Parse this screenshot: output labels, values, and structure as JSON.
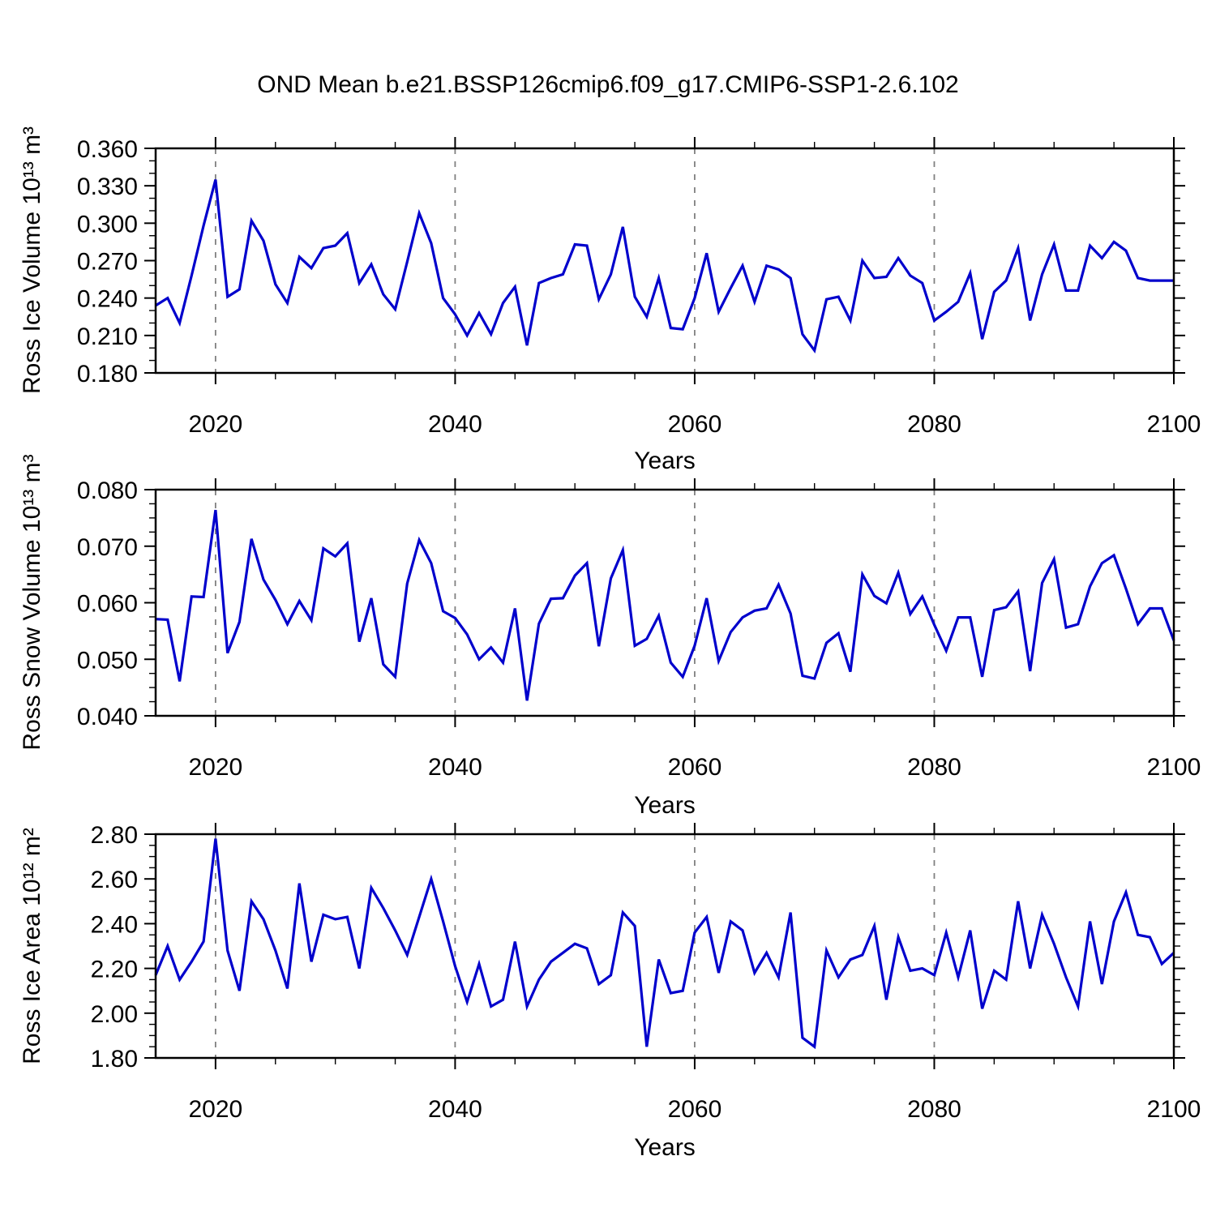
{
  "title": "OND Mean b.e21.BSSP126cmip6.f09_g17.CMIP6-SSP1-2.6.102",
  "xlabel": "Years",
  "line_color": "#0000CC",
  "grid_color": "#808080",
  "axis_color": "#000000",
  "chart_data": [
    {
      "type": "line",
      "ylabel": "Ross Ice Volume 10¹³ m³",
      "ylim": [
        0.18,
        0.36
      ],
      "ytick_values": [
        0.18,
        0.21,
        0.24,
        0.27,
        0.3,
        0.33,
        0.36
      ],
      "ytick_labels": [
        "0.180",
        "0.210",
        "0.240",
        "0.270",
        "0.300",
        "0.330",
        "0.360"
      ],
      "y_minor_step": 0.01,
      "xlim": [
        2015,
        2100
      ],
      "x_start": 2015,
      "x_step": 1,
      "xtick_values": [
        2020,
        2040,
        2060,
        2080,
        2100
      ],
      "xtick_labels": [
        "2020",
        "2040",
        "2060",
        "2080",
        "2100"
      ],
      "x_minor_step": 5,
      "grid_x": [
        2020,
        2040,
        2060,
        2080
      ],
      "grid_style": "dashed-vertical",
      "legend": "none",
      "values": [
        0.234,
        0.24,
        0.22,
        0.258,
        0.298,
        0.335,
        0.241,
        0.247,
        0.302,
        0.286,
        0.251,
        0.236,
        0.273,
        0.264,
        0.28,
        0.282,
        0.292,
        0.252,
        0.267,
        0.243,
        0.231,
        0.269,
        0.308,
        0.284,
        0.24,
        0.227,
        0.21,
        0.228,
        0.211,
        0.236,
        0.249,
        0.202,
        0.252,
        0.256,
        0.259,
        0.283,
        0.282,
        0.239,
        0.259,
        0.297,
        0.241,
        0.225,
        0.256,
        0.216,
        0.215,
        0.24,
        0.276,
        0.229,
        0.248,
        0.266,
        0.237,
        0.266,
        0.263,
        0.256,
        0.211,
        0.198,
        0.239,
        0.241,
        0.222,
        0.27,
        0.256,
        0.257,
        0.272,
        0.258,
        0.252,
        0.222,
        0.229,
        0.237,
        0.26,
        0.207,
        0.245,
        0.254,
        0.28,
        0.222,
        0.259,
        0.283,
        0.246,
        0.246,
        0.282,
        0.272,
        0.285,
        0.278,
        0.256,
        0.254,
        0.254,
        0.254
      ]
    },
    {
      "type": "line",
      "ylabel": "Ross Snow Volume 10¹³ m³",
      "ylim": [
        0.04,
        0.08
      ],
      "ytick_values": [
        0.04,
        0.05,
        0.06,
        0.07,
        0.08
      ],
      "ytick_labels": [
        "0.040",
        "0.050",
        "0.060",
        "0.070",
        "0.080"
      ],
      "y_minor_step": 0.0025,
      "xlim": [
        2015,
        2100
      ],
      "x_start": 2015,
      "x_step": 1,
      "xtick_values": [
        2020,
        2040,
        2060,
        2080,
        2100
      ],
      "xtick_labels": [
        "2020",
        "2040",
        "2060",
        "2080",
        "2100"
      ],
      "x_minor_step": 5,
      "grid_x": [
        2020,
        2040,
        2060,
        2080
      ],
      "grid_style": "dashed-vertical",
      "legend": "none",
      "values": [
        0.0571,
        0.057,
        0.0461,
        0.0611,
        0.061,
        0.0764,
        0.0511,
        0.0566,
        0.0713,
        0.0641,
        0.0605,
        0.0562,
        0.0603,
        0.0569,
        0.0696,
        0.0682,
        0.0705,
        0.0531,
        0.0608,
        0.0491,
        0.0469,
        0.0634,
        0.0711,
        0.067,
        0.0585,
        0.0573,
        0.0544,
        0.05,
        0.0521,
        0.0494,
        0.059,
        0.0427,
        0.0563,
        0.0607,
        0.0608,
        0.0648,
        0.067,
        0.0523,
        0.0643,
        0.0693,
        0.0524,
        0.0536,
        0.0577,
        0.0494,
        0.0469,
        0.0524,
        0.0608,
        0.0497,
        0.0548,
        0.0574,
        0.0586,
        0.059,
        0.0632,
        0.0581,
        0.0471,
        0.0466,
        0.0529,
        0.0546,
        0.0478,
        0.065,
        0.0612,
        0.0599,
        0.0653,
        0.058,
        0.0611,
        0.0561,
        0.0515,
        0.0574,
        0.0574,
        0.0469,
        0.0587,
        0.0592,
        0.062,
        0.0479,
        0.0635,
        0.0677,
        0.0556,
        0.0562,
        0.0629,
        0.067,
        0.0684,
        0.0625,
        0.0562,
        0.059,
        0.059,
        0.0533
      ]
    },
    {
      "type": "line",
      "ylabel": "Ross Ice Area 10¹² m²",
      "ylim": [
        1.8,
        2.8
      ],
      "ytick_values": [
        1.8,
        2.0,
        2.2,
        2.4,
        2.6,
        2.8
      ],
      "ytick_labels": [
        "1.80",
        "2.00",
        "2.20",
        "2.40",
        "2.60",
        "2.80"
      ],
      "y_minor_step": 0.05,
      "xlim": [
        2015,
        2100
      ],
      "x_start": 2015,
      "x_step": 1,
      "xtick_values": [
        2020,
        2040,
        2060,
        2080,
        2100
      ],
      "xtick_labels": [
        "2020",
        "2040",
        "2060",
        "2080",
        "2100"
      ],
      "x_minor_step": 5,
      "grid_x": [
        2020,
        2040,
        2060,
        2080
      ],
      "grid_style": "dashed-vertical",
      "legend": "none",
      "values": [
        2.17,
        2.3,
        2.15,
        2.23,
        2.32,
        2.78,
        2.28,
        2.1,
        2.5,
        2.42,
        2.28,
        2.11,
        2.58,
        2.23,
        2.44,
        2.42,
        2.43,
        2.2,
        2.56,
        2.47,
        2.37,
        2.26,
        2.43,
        2.6,
        2.41,
        2.21,
        2.05,
        2.22,
        2.03,
        2.06,
        2.32,
        2.03,
        2.15,
        2.23,
        2.27,
        2.31,
        2.29,
        2.13,
        2.17,
        2.45,
        2.39,
        1.85,
        2.24,
        2.09,
        2.1,
        2.36,
        2.43,
        2.18,
        2.41,
        2.37,
        2.18,
        2.27,
        2.16,
        2.45,
        1.89,
        1.85,
        2.28,
        2.16,
        2.24,
        2.26,
        2.39,
        2.06,
        2.34,
        2.19,
        2.2,
        2.17,
        2.36,
        2.16,
        2.37,
        2.02,
        2.19,
        2.15,
        2.5,
        2.2,
        2.44,
        2.31,
        2.16,
        2.03,
        2.41,
        2.13,
        2.41,
        2.54,
        2.35,
        2.34,
        2.22,
        2.27
      ]
    }
  ]
}
